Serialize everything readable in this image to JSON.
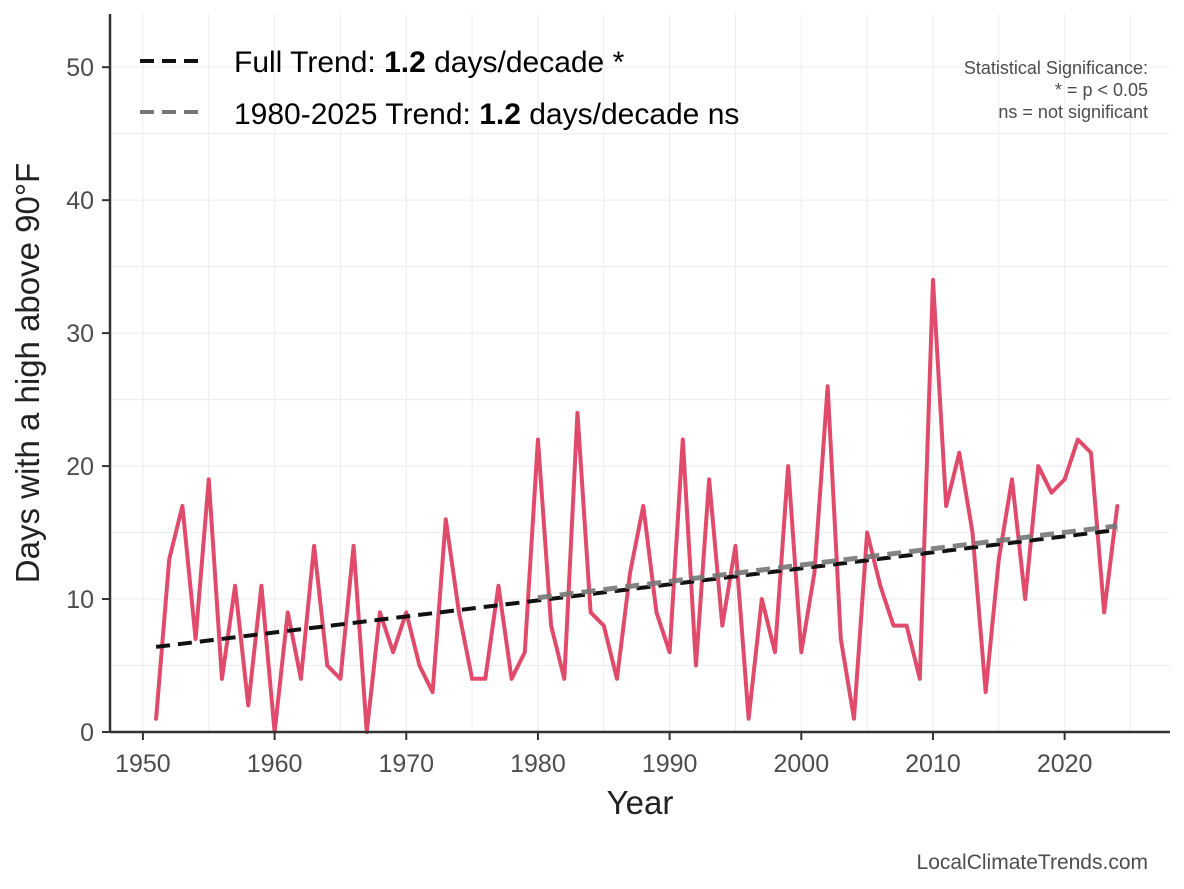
{
  "chart_data": {
    "type": "line",
    "xlabel": "Year",
    "ylabel": "Days with a high above 90°F",
    "xlim": [
      1947.5,
      2028
    ],
    "ylim": [
      0,
      54
    ],
    "x_ticks": [
      1950,
      1960,
      1970,
      1980,
      1990,
      2000,
      2010,
      2020
    ],
    "y_ticks": [
      0,
      10,
      20,
      30,
      40,
      50
    ],
    "grid": true,
    "legend_position": "top-left",
    "series": [
      {
        "role": "observed",
        "color": "#e04b6c",
        "x": [
          1951,
          1952,
          1953,
          1954,
          1955,
          1956,
          1957,
          1958,
          1959,
          1960,
          1961,
          1962,
          1963,
          1964,
          1965,
          1966,
          1967,
          1968,
          1969,
          1970,
          1971,
          1972,
          1973,
          1974,
          1975,
          1976,
          1977,
          1978,
          1979,
          1980,
          1981,
          1982,
          1983,
          1984,
          1985,
          1986,
          1987,
          1988,
          1989,
          1990,
          1991,
          1992,
          1993,
          1994,
          1995,
          1996,
          1997,
          1998,
          1999,
          2000,
          2001,
          2002,
          2003,
          2004,
          2005,
          2006,
          2007,
          2008,
          2009,
          2010,
          2011,
          2012,
          2013,
          2014,
          2015,
          2016,
          2017,
          2018,
          2019,
          2020,
          2021,
          2022,
          2023,
          2024
        ],
        "values": [
          1,
          13,
          17,
          7,
          19,
          4,
          11,
          2,
          11,
          0,
          9,
          4,
          14,
          5,
          4,
          14,
          0,
          9,
          6,
          9,
          5,
          3,
          16,
          9,
          4,
          4,
          11,
          4,
          6,
          22,
          8,
          4,
          24,
          9,
          8,
          4,
          12,
          17,
          9,
          6,
          22,
          5,
          19,
          8,
          14,
          1,
          10,
          6,
          20,
          6,
          12,
          26,
          7,
          1,
          15,
          11,
          8,
          8,
          4,
          34,
          17,
          21,
          15,
          3,
          13,
          19,
          10,
          20,
          18,
          19,
          22,
          21,
          9,
          17
        ]
      },
      {
        "name": "Full Trend",
        "color": "#111111",
        "style": "dashed",
        "x": [
          1951,
          2024
        ],
        "values": [
          6.4,
          15.2
        ]
      },
      {
        "name": "1980-2025 Trend",
        "color": "#777777",
        "style": "dashed",
        "x": [
          1980,
          2024
        ],
        "values": [
          10.1,
          15.5
        ]
      }
    ],
    "legend": [
      {
        "prefix": "Full Trend: ",
        "bold": "1.2",
        "suffix": " days/decade *",
        "color": "#111111"
      },
      {
        "prefix": "1980-2025 Trend: ",
        "bold": "1.2",
        "suffix": " days/decade ns",
        "color": "#777777"
      }
    ],
    "annotations": {
      "significance": [
        "Statistical Significance:",
        "* = p < 0.05",
        "ns = not significant"
      ],
      "source": "LocalClimateTrends.com"
    }
  }
}
